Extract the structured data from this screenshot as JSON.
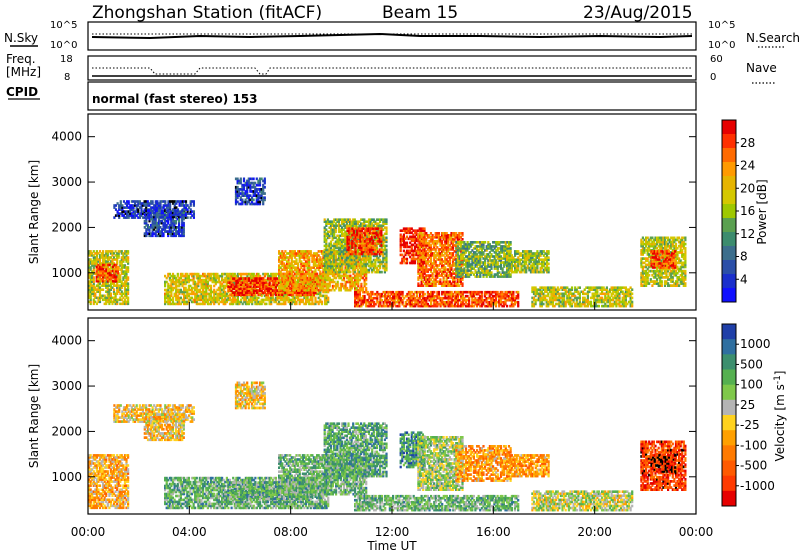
{
  "header": {
    "station": "Zhongshan Station (fitACF)",
    "beam": "Beam 15",
    "date": "23/Aug/2015"
  },
  "top_panels": {
    "nsky_label": "N.Sky",
    "nsky_ticks": [
      "10^5",
      "10^0"
    ],
    "nsearch_label": "N.Search",
    "nsearch_ticks": [
      "10^5",
      "10^0"
    ],
    "freq_label_1": "Freq.",
    "freq_label_2": "[MHz]",
    "freq_ticks": [
      "18",
      "8"
    ],
    "nave_label": "Nave",
    "nave_ticks": [
      "60",
      "0"
    ],
    "cpid_label": "CPID",
    "cpid_value": "normal (fast stereo) 153"
  },
  "chart_data": [
    {
      "type": "heatmap",
      "name": "power",
      "ylabel": "Slant Range [km]",
      "ylim": [
        180,
        4500
      ],
      "yticks": [
        1000,
        2000,
        3000,
        4000
      ],
      "xlim": [
        0,
        24
      ],
      "colorbar": {
        "label": "Power [dB]",
        "ticks": [
          "28",
          "24",
          "20",
          "16",
          "12",
          "8",
          "4"
        ],
        "colors": [
          "#e60000",
          "#ff3000",
          "#ff6a00",
          "#ff9a00",
          "#e6b400",
          "#d4c800",
          "#9ec800",
          "#5aa050",
          "#3c8c6e",
          "#3c6e8c",
          "#2b4fa8",
          "#1a2fcc",
          "#1010ff"
        ]
      },
      "regions": [
        {
          "t0": 0.0,
          "t1": 1.6,
          "r0": 300,
          "r1": 1500,
          "level": 0.55
        },
        {
          "t0": 0.3,
          "t1": 1.2,
          "r0": 800,
          "r1": 1200,
          "level": 0.85
        },
        {
          "t0": 1.0,
          "t1": 4.2,
          "r0": 2200,
          "r1": 2600,
          "level": 0.12
        },
        {
          "t0": 2.2,
          "t1": 3.8,
          "r0": 1800,
          "r1": 2400,
          "level": 0.15
        },
        {
          "t0": 3.0,
          "t1": 9.5,
          "r0": 300,
          "r1": 1000,
          "level": 0.6
        },
        {
          "t0": 5.5,
          "t1": 9.0,
          "r0": 500,
          "r1": 900,
          "level": 0.9
        },
        {
          "t0": 5.8,
          "t1": 7.0,
          "r0": 2500,
          "r1": 3100,
          "level": 0.15
        },
        {
          "t0": 7.5,
          "t1": 11.0,
          "r0": 600,
          "r1": 1500,
          "level": 0.7
        },
        {
          "t0": 9.3,
          "t1": 11.8,
          "r0": 1000,
          "r1": 2200,
          "level": 0.5
        },
        {
          "t0": 10.2,
          "t1": 11.6,
          "r0": 1400,
          "r1": 2000,
          "level": 0.9
        },
        {
          "t0": 12.3,
          "t1": 13.3,
          "r0": 1200,
          "r1": 2000,
          "level": 0.95
        },
        {
          "t0": 13.0,
          "t1": 14.8,
          "r0": 700,
          "r1": 1900,
          "level": 0.8
        },
        {
          "t0": 14.5,
          "t1": 16.7,
          "r0": 900,
          "r1": 1700,
          "level": 0.45
        },
        {
          "t0": 16.5,
          "t1": 18.2,
          "r0": 1000,
          "r1": 1500,
          "level": 0.5
        },
        {
          "t0": 10.5,
          "t1": 17.0,
          "r0": 250,
          "r1": 600,
          "level": 0.85
        },
        {
          "t0": 17.5,
          "t1": 21.5,
          "r0": 250,
          "r1": 700,
          "level": 0.55
        },
        {
          "t0": 21.8,
          "t1": 23.6,
          "r0": 700,
          "r1": 1800,
          "level": 0.55
        },
        {
          "t0": 22.2,
          "t1": 23.2,
          "r0": 1100,
          "r1": 1500,
          "level": 0.85
        }
      ]
    },
    {
      "type": "heatmap",
      "name": "velocity",
      "ylabel": "Slant Range [km]",
      "ylim": [
        180,
        4500
      ],
      "yticks": [
        1000,
        2000,
        3000,
        4000
      ],
      "xlim": [
        0,
        24
      ],
      "xticks": [
        "00:00",
        "04:00",
        "08:00",
        "12:00",
        "16:00",
        "20:00",
        "00:00"
      ],
      "xlabel": "Time UT",
      "colorbar": {
        "label": "Velocity [m s-1]",
        "label_main": "Velocity [m s",
        "label_sup": "-1",
        "label_end": "]",
        "ticks": [
          "1000",
          "500",
          "100",
          "25",
          "-25",
          "-100",
          "-500",
          "-1000"
        ],
        "colors": [
          "#1f3fa8",
          "#2f6fa0",
          "#3c8f6e",
          "#55b050",
          "#7fc84a",
          "#b4b4b4",
          "#ffd21e",
          "#ffa000",
          "#ff7a00",
          "#ff5a00",
          "#ff3a00",
          "#e60000"
        ]
      },
      "regions": [
        {
          "t0": 0.0,
          "t1": 1.6,
          "r0": 300,
          "r1": 1500,
          "level": 0.4
        },
        {
          "t0": 1.0,
          "t1": 4.2,
          "r0": 2200,
          "r1": 2600,
          "level": 0.45
        },
        {
          "t0": 2.2,
          "t1": 3.8,
          "r0": 1800,
          "r1": 2400,
          "level": 0.45
        },
        {
          "t0": 3.0,
          "t1": 9.5,
          "r0": 300,
          "r1": 1000,
          "level": 0.7
        },
        {
          "t0": 5.5,
          "t1": 9.0,
          "r0": 500,
          "r1": 900,
          "level": 0.7
        },
        {
          "t0": 5.8,
          "t1": 7.0,
          "r0": 2500,
          "r1": 3100,
          "level": 0.45
        },
        {
          "t0": 7.5,
          "t1": 11.0,
          "r0": 600,
          "r1": 1500,
          "level": 0.68
        },
        {
          "t0": 9.3,
          "t1": 11.8,
          "r0": 1000,
          "r1": 2200,
          "level": 0.72
        },
        {
          "t0": 12.3,
          "t1": 13.3,
          "r0": 1200,
          "r1": 2000,
          "level": 0.78
        },
        {
          "t0": 13.0,
          "t1": 14.8,
          "r0": 700,
          "r1": 1900,
          "level": 0.6
        },
        {
          "t0": 14.5,
          "t1": 16.7,
          "r0": 900,
          "r1": 1700,
          "level": 0.35
        },
        {
          "t0": 16.5,
          "t1": 18.2,
          "r0": 1000,
          "r1": 1500,
          "level": 0.35
        },
        {
          "t0": 10.5,
          "t1": 17.0,
          "r0": 250,
          "r1": 600,
          "level": 0.68
        },
        {
          "t0": 17.5,
          "t1": 21.5,
          "r0": 250,
          "r1": 700,
          "level": 0.55
        },
        {
          "t0": 21.8,
          "t1": 23.6,
          "r0": 700,
          "r1": 1800,
          "level": 0.15
        },
        {
          "t0": 22.2,
          "t1": 23.2,
          "r0": 1100,
          "r1": 1500,
          "level": 0.05
        }
      ]
    }
  ]
}
